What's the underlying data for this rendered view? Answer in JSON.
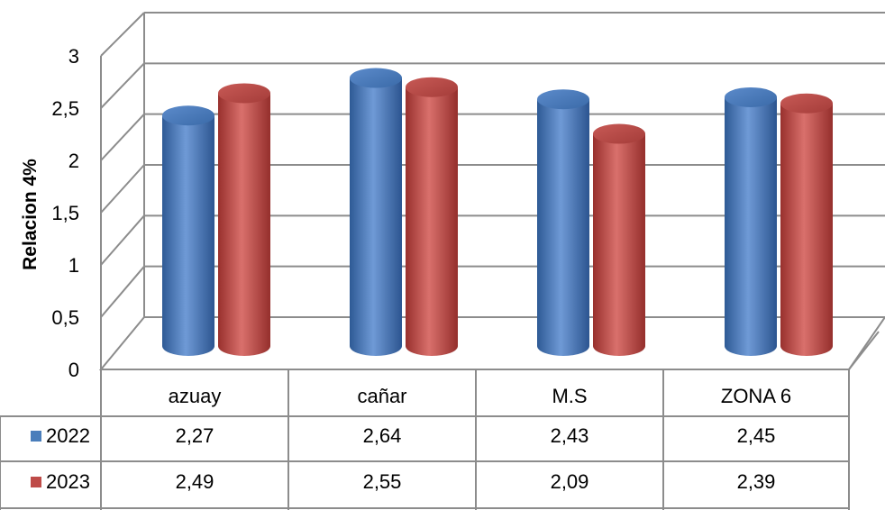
{
  "chart_data": {
    "type": "bar",
    "style": "3d-cylinder-with-data-table",
    "ylabel": "Relacion 4%",
    "ylim": [
      0,
      3
    ],
    "y_ticks": [
      "0",
      "0,5",
      "1",
      "1,5",
      "2",
      "2,5",
      "3"
    ],
    "grid": true,
    "categories": [
      "azuay",
      "cañar",
      "M.S",
      "ZONA 6"
    ],
    "series": [
      {
        "name": "2022",
        "color": "#4a7ebb",
        "values": [
          2.27,
          2.64,
          2.43,
          2.45
        ],
        "labels": [
          "2,27",
          "2,64",
          "2,43",
          "2,45"
        ]
      },
      {
        "name": "2023",
        "color": "#be4b48",
        "values": [
          2.49,
          2.55,
          2.09,
          2.39
        ],
        "labels": [
          "2,49",
          "2,55",
          "2,09",
          "2,39"
        ]
      }
    ]
  }
}
